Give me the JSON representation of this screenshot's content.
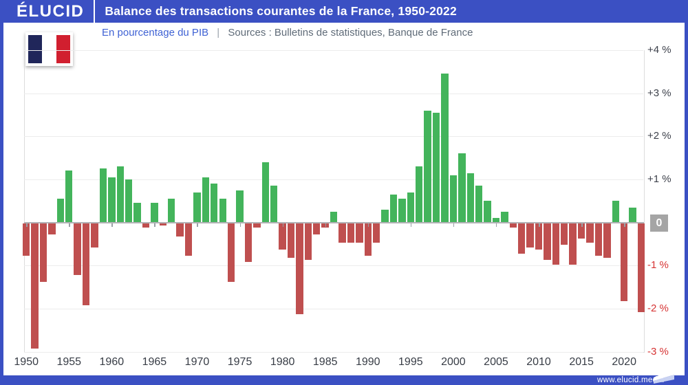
{
  "header": {
    "logo": "ÉLUCID",
    "title": "Balance des transactions courantes de la France, 1950-2022"
  },
  "subtitle": {
    "metric": "En pourcentage du PIB",
    "separator": "|",
    "sources": "Sources : Bulletins de statistiques, Banque de France"
  },
  "footer": {
    "site": "www.elucid.media"
  },
  "colors": {
    "frame_blue": "#3b50c3",
    "positive_green": "#43b45b",
    "negative_red": "#bf4f4f",
    "subtitle_blue": "#3f62d4",
    "subtitle_gray": "#5f6b78",
    "neg_label_red": "#d63333",
    "zero_badge_gray": "#a5a5a5",
    "flag_blue": "#20265a",
    "flag_red": "#d11f2f"
  },
  "chart_data": {
    "type": "bar",
    "title": "Balance des transactions courantes de la France, 1950-2022",
    "unit": "En pourcentage du PIB",
    "grid": true,
    "ylim": [
      -3,
      4
    ],
    "x": [
      1950,
      1951,
      1952,
      1953,
      1954,
      1955,
      1956,
      1957,
      1958,
      1959,
      1960,
      1961,
      1962,
      1963,
      1964,
      1965,
      1966,
      1967,
      1968,
      1969,
      1970,
      1971,
      1972,
      1973,
      1974,
      1975,
      1976,
      1977,
      1978,
      1979,
      1980,
      1981,
      1982,
      1983,
      1984,
      1985,
      1986,
      1987,
      1988,
      1989,
      1990,
      1991,
      1992,
      1993,
      1994,
      1995,
      1996,
      1997,
      1998,
      1999,
      2000,
      2001,
      2002,
      2003,
      2004,
      2005,
      2006,
      2007,
      2008,
      2009,
      2010,
      2011,
      2012,
      2013,
      2014,
      2015,
      2016,
      2017,
      2018,
      2019,
      2020,
      2021,
      2022
    ],
    "values": [
      -0.75,
      -2.9,
      -1.35,
      -0.25,
      0.55,
      1.2,
      -1.2,
      -1.9,
      -0.55,
      1.25,
      1.05,
      1.3,
      1.0,
      0.45,
      -0.1,
      0.45,
      -0.05,
      0.55,
      -0.3,
      -0.75,
      0.7,
      1.05,
      0.9,
      0.55,
      -1.35,
      0.75,
      -0.9,
      -0.1,
      1.4,
      0.85,
      -0.6,
      -0.8,
      -2.1,
      -0.85,
      -0.25,
      -0.1,
      0.25,
      -0.45,
      -0.45,
      -0.45,
      -0.75,
      -0.45,
      0.3,
      0.65,
      0.55,
      0.7,
      1.3,
      2.6,
      2.55,
      3.45,
      1.1,
      1.6,
      1.15,
      0.85,
      0.5,
      0.1,
      0.25,
      -0.1,
      -0.7,
      -0.55,
      -0.6,
      -0.85,
      -0.95,
      -0.5,
      -0.95,
      -0.35,
      -0.45,
      -0.75,
      -0.8,
      0.5,
      -1.8,
      0.35,
      -2.05
    ],
    "y_ticks": [
      {
        "value": 4,
        "label": "+4 %"
      },
      {
        "value": 3,
        "label": "+3 %"
      },
      {
        "value": 2,
        "label": "+2 %"
      },
      {
        "value": 1,
        "label": "+1 %"
      },
      {
        "value": 0,
        "label": "0"
      },
      {
        "value": -1,
        "label": "-1 %"
      },
      {
        "value": -2,
        "label": "-2 %"
      },
      {
        "value": -3,
        "label": "-3 %"
      }
    ],
    "x_ticks": [
      1950,
      1955,
      1960,
      1965,
      1970,
      1975,
      1980,
      1985,
      1990,
      1995,
      2000,
      2005,
      2010,
      2015,
      2020
    ]
  }
}
